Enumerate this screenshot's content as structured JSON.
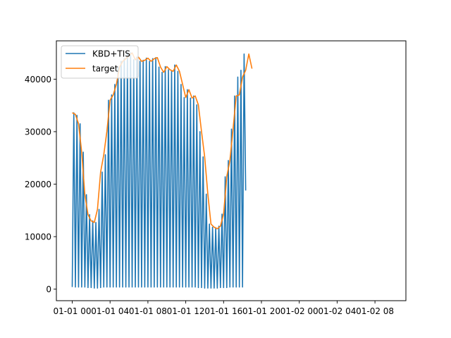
{
  "chart_data": {
    "type": "line",
    "x_ticks": [
      "01-01 00",
      "01-01 04",
      "01-01 08",
      "01-01 12",
      "01-01 16",
      "01-01 20",
      "01-02 00",
      "01-02 04",
      "01-02 08"
    ],
    "y_ticks": [
      "0",
      "10000",
      "20000",
      "30000",
      "40000"
    ],
    "ylim": [
      -2200,
      47300
    ],
    "legend_position": "upper-left",
    "grid": false,
    "series": [
      {
        "name": "KBD+TIS",
        "color": "#1f77b4",
        "sampling_minutes": 10,
        "values": [
          400,
          33600,
          400,
          33100,
          400,
          31500,
          400,
          26100,
          400,
          18000,
          300,
          14200,
          300,
          13000,
          200,
          12700,
          200,
          15200,
          300,
          22300,
          400,
          25600,
          400,
          36000,
          400,
          37000,
          400,
          39000,
          400,
          42300,
          400,
          43400,
          400,
          43900,
          400,
          45000,
          400,
          45000,
          400,
          43700,
          400,
          44200,
          400,
          43400,
          400,
          43600,
          400,
          44000,
          400,
          43400,
          400,
          43900,
          400,
          44100,
          400,
          42300,
          400,
          41300,
          400,
          42400,
          400,
          41800,
          400,
          41500,
          400,
          42700,
          400,
          41500,
          400,
          39000,
          400,
          36500,
          400,
          38000,
          400,
          36400,
          400,
          36800,
          400,
          35100,
          300,
          30000,
          300,
          25200,
          200,
          18100,
          200,
          12400,
          200,
          11800,
          200,
          11700,
          200,
          12000,
          300,
          14300,
          300,
          21400,
          300,
          24500,
          400,
          30500,
          400,
          36800,
          400,
          40400,
          400,
          41700,
          400,
          44800,
          18800
        ]
      },
      {
        "name": "target",
        "color": "#ff7f0e",
        "sampling_minutes": 20,
        "values": [
          33600,
          33300,
          31500,
          26100,
          18000,
          14200,
          13000,
          12700,
          15200,
          22300,
          25600,
          30100,
          36000,
          37000,
          39000,
          42300,
          43400,
          43900,
          44500,
          45000,
          43700,
          44200,
          43400,
          43600,
          44000,
          43400,
          43900,
          44100,
          42300,
          41300,
          42400,
          41800,
          41500,
          42700,
          41500,
          39000,
          36500,
          38000,
          36400,
          36800,
          35100,
          30000,
          25200,
          18100,
          12400,
          11800,
          11500,
          12000,
          14300,
          21400,
          24500,
          30500,
          36800,
          37000,
          40400,
          41700,
          44800,
          42000
        ]
      }
    ]
  }
}
